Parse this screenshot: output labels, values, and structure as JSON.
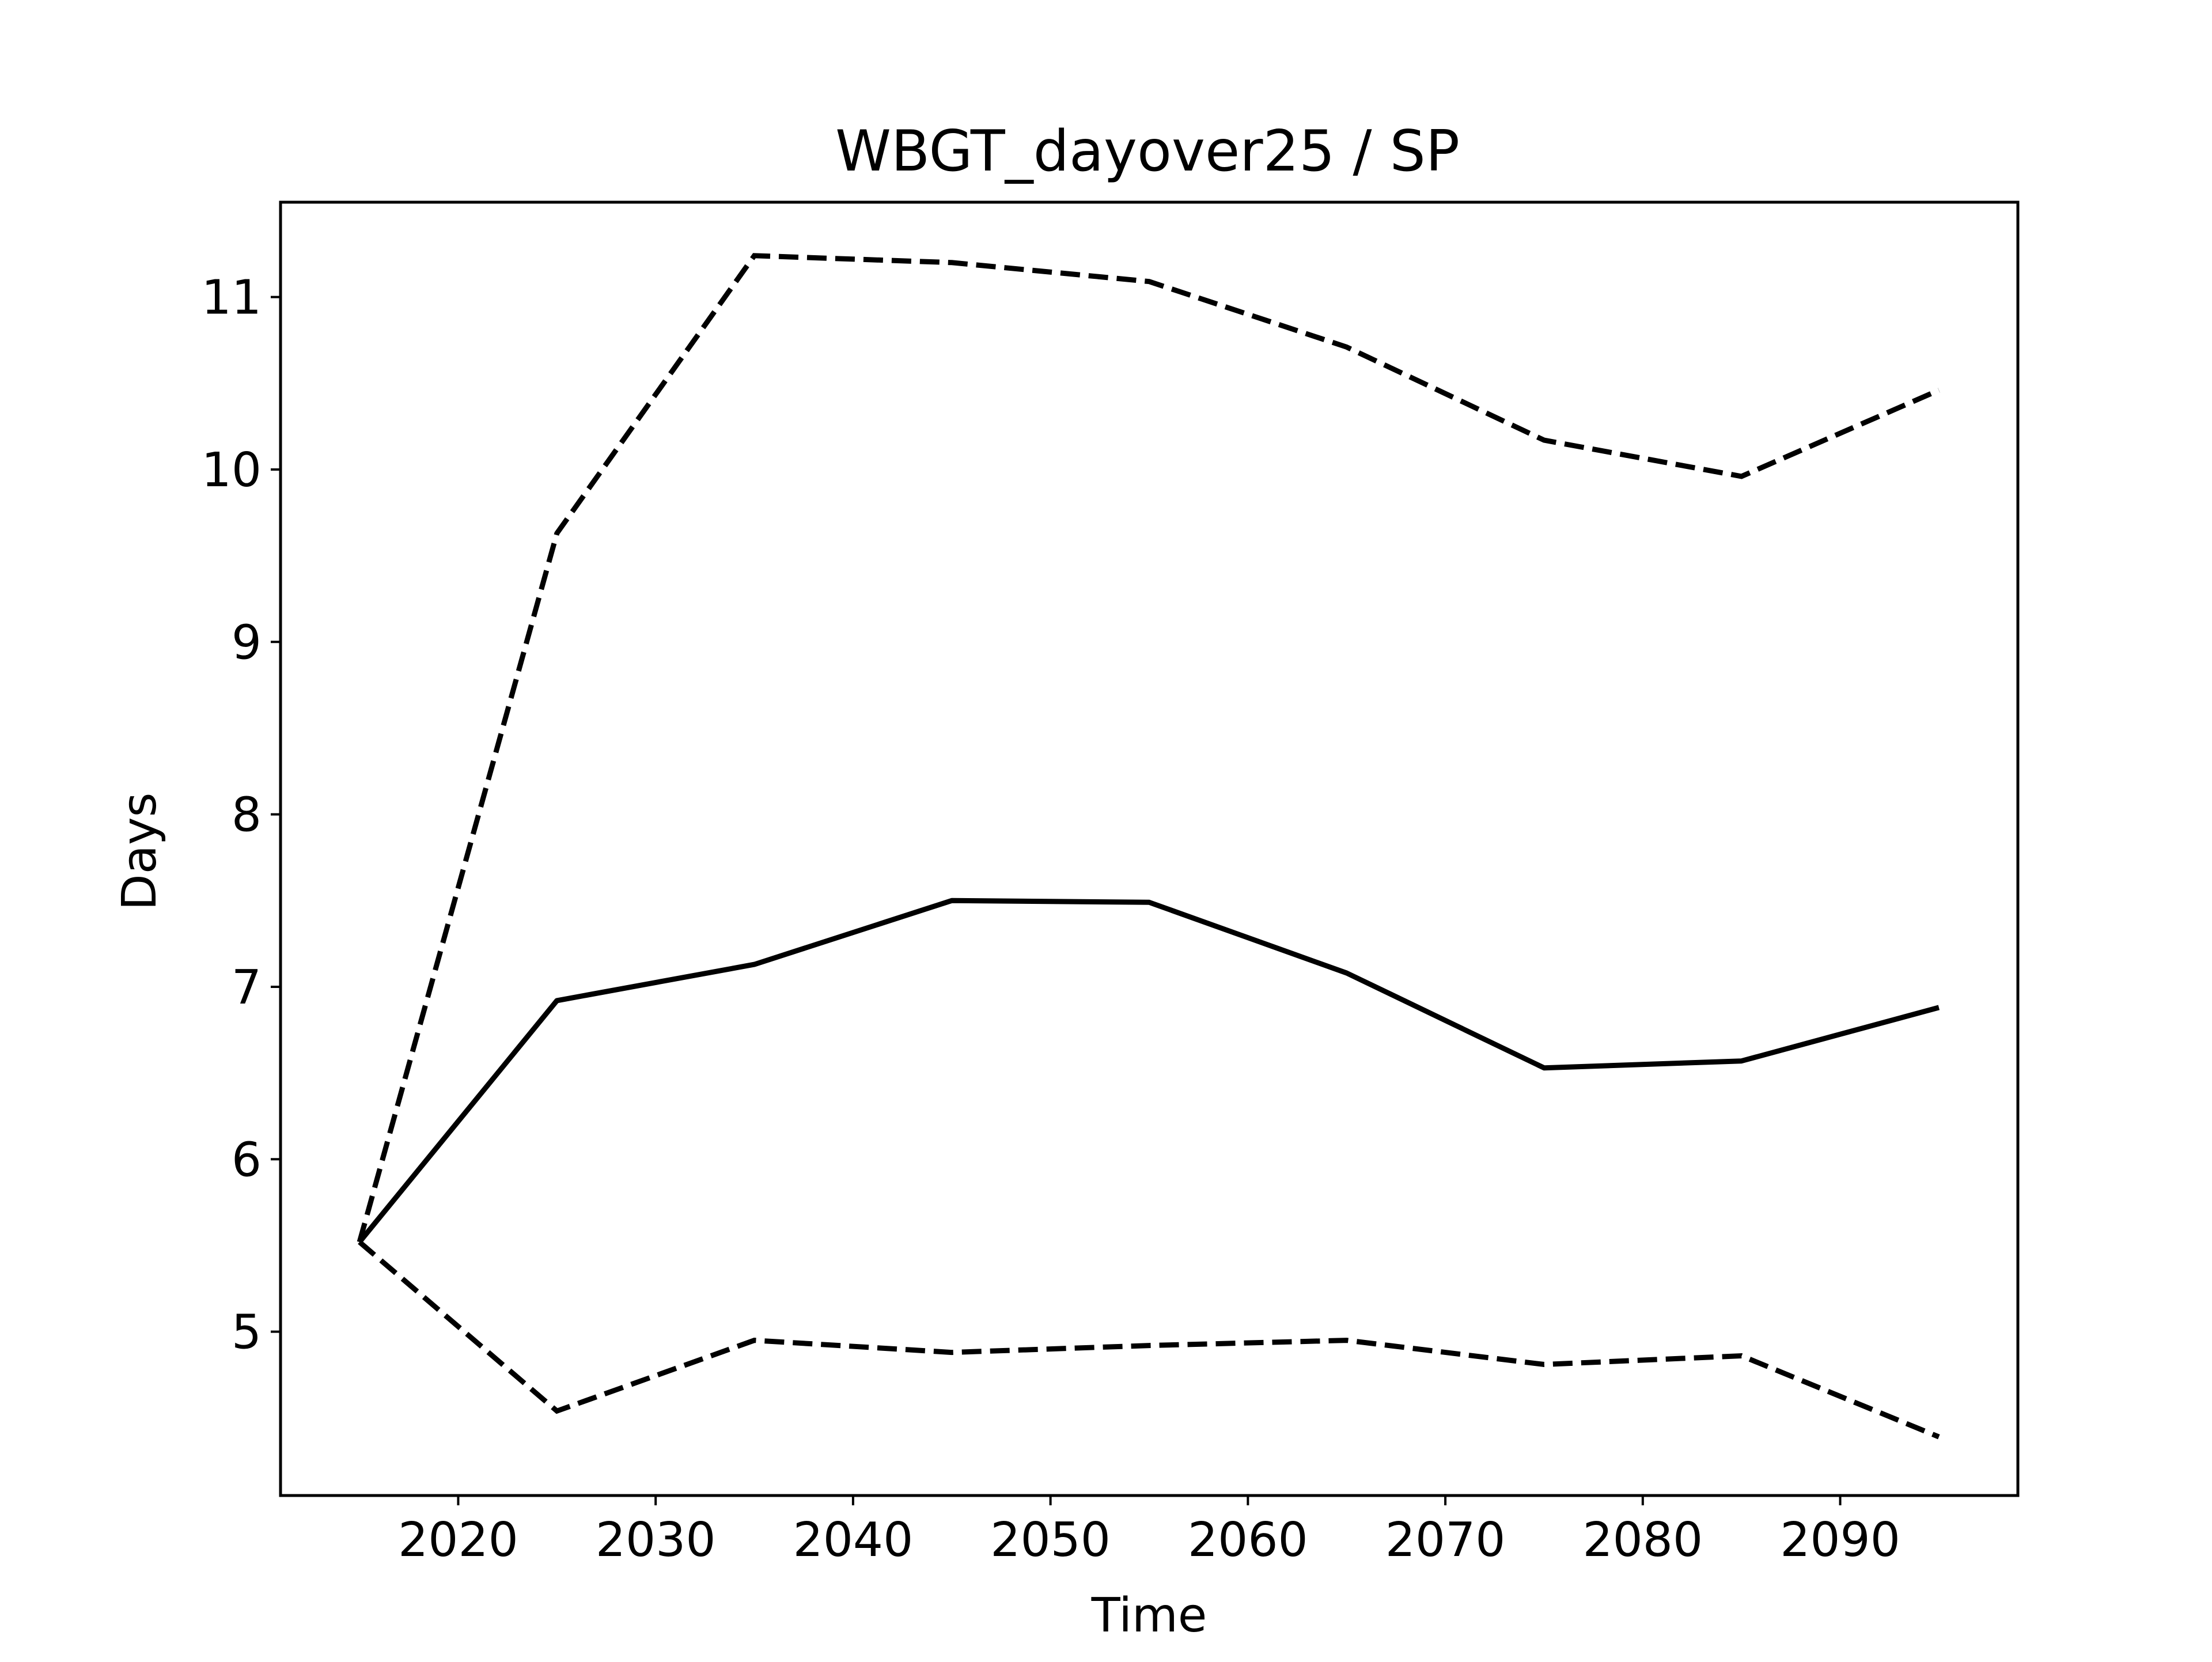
{
  "chart_data": {
    "type": "line",
    "title": "WBGT_dayover25 / SP",
    "xlabel": "Time",
    "ylabel": "Days",
    "xlim": [
      2011,
      2099
    ],
    "ylim": [
      4.05,
      11.55
    ],
    "xticks": [
      2020,
      2030,
      2040,
      2050,
      2060,
      2070,
      2080,
      2090
    ],
    "yticks": [
      5,
      6,
      7,
      8,
      9,
      10,
      11
    ],
    "grid": false,
    "legend": "none",
    "x": [
      2015,
      2025,
      2035,
      2045,
      2055,
      2065,
      2075,
      2085,
      2095
    ],
    "series": [
      {
        "style": "solid",
        "color": "#000000",
        "values": [
          5.52,
          6.92,
          7.13,
          7.5,
          7.49,
          7.08,
          6.53,
          6.57,
          6.88
        ]
      },
      {
        "style": "dashed",
        "color": "#000000",
        "values": [
          5.52,
          9.63,
          11.24,
          11.2,
          11.09,
          10.71,
          10.17,
          9.96,
          10.46
        ]
      },
      {
        "style": "dashed",
        "color": "#000000",
        "values": [
          5.52,
          4.54,
          4.95,
          4.88,
          4.92,
          4.95,
          4.81,
          4.86,
          4.39
        ]
      }
    ]
  }
}
